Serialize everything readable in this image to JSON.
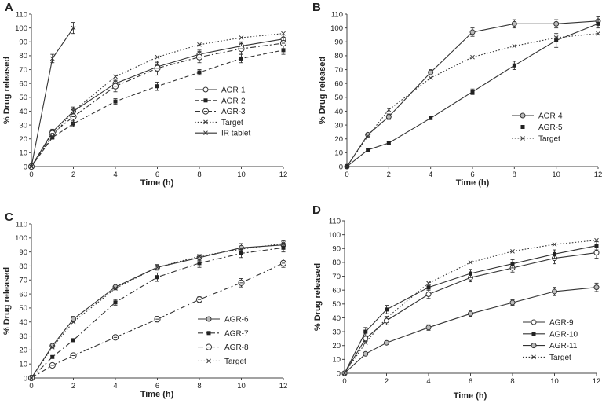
{
  "chart_data": [
    {
      "type": "line",
      "panel": "A",
      "title": "",
      "xlabel": "Time (h)",
      "ylabel": "% Drug released",
      "xlim": [
        0,
        12
      ],
      "ylim": [
        0,
        110
      ],
      "xticks": [
        0,
        2,
        4,
        6,
        8,
        10,
        12
      ],
      "yticks": [
        0,
        10,
        20,
        30,
        40,
        50,
        60,
        70,
        80,
        90,
        100,
        110
      ],
      "legend_position": "center-right",
      "series": [
        {
          "name": "AGR-1",
          "marker": "circle-open",
          "dash": "solid",
          "x": [
            0,
            1,
            2,
            4,
            6,
            8,
            10,
            12
          ],
          "values": [
            0,
            25,
            40,
            60,
            72,
            81,
            87,
            92
          ],
          "err": [
            0,
            2,
            3,
            3,
            3,
            3,
            3,
            3
          ]
        },
        {
          "name": "AGR-2",
          "marker": "square-filled",
          "dash": "dash",
          "x": [
            0,
            1,
            2,
            4,
            6,
            8,
            10,
            12
          ],
          "values": [
            0,
            21,
            31,
            47,
            58,
            68,
            78,
            84
          ],
          "err": [
            0,
            1,
            2,
            2,
            3,
            2,
            3,
            3
          ]
        },
        {
          "name": "AGR-3",
          "marker": "circle-dashed",
          "dash": "dashdot",
          "x": [
            0,
            1,
            2,
            4,
            6,
            8,
            10,
            12
          ],
          "values": [
            0,
            24,
            36,
            58,
            71,
            79,
            85,
            89
          ],
          "err": [
            0,
            2,
            5,
            4,
            5,
            4,
            4,
            4
          ]
        },
        {
          "name": "Target",
          "marker": "x",
          "dash": "dot",
          "x": [
            0,
            1,
            2,
            4,
            6,
            8,
            10,
            12
          ],
          "values": [
            0,
            22,
            40,
            65,
            79,
            88,
            93,
            96
          ],
          "err": []
        },
        {
          "name": "IR tablet",
          "marker": "x",
          "dash": "solid",
          "x": [
            0,
            1,
            2
          ],
          "values": [
            0,
            78,
            100
          ],
          "err": [
            0,
            3,
            4
          ]
        }
      ]
    },
    {
      "type": "line",
      "panel": "B",
      "title": "",
      "xlabel": "Time (h)",
      "ylabel": "% Drug released",
      "xlim": [
        0,
        12
      ],
      "ylim": [
        0,
        110
      ],
      "xticks": [
        0,
        2,
        4,
        6,
        8,
        10,
        12
      ],
      "yticks": [
        0,
        10,
        20,
        30,
        40,
        50,
        60,
        70,
        80,
        90,
        100,
        110
      ],
      "legend_position": "center-right",
      "series": [
        {
          "name": "AGR-4",
          "marker": "circle-gray",
          "dash": "solid",
          "x": [
            0,
            1,
            2,
            4,
            6,
            8,
            10,
            12
          ],
          "values": [
            0,
            23,
            36,
            68,
            97,
            103,
            103,
            105
          ],
          "err": [
            0,
            1,
            2,
            2,
            3,
            3,
            3,
            3
          ]
        },
        {
          "name": "AGR-5",
          "marker": "square-filled",
          "dash": "solid",
          "x": [
            0,
            1,
            2,
            4,
            6,
            8,
            10,
            12
          ],
          "values": [
            0,
            12,
            17,
            35,
            54,
            73,
            91,
            103
          ],
          "err": [
            0,
            1,
            1,
            1,
            2,
            3,
            5,
            3
          ]
        },
        {
          "name": "Target",
          "marker": "x",
          "dash": "dot",
          "x": [
            0,
            1,
            2,
            4,
            6,
            8,
            10,
            12
          ],
          "values": [
            0,
            22,
            41,
            64,
            79,
            87,
            93,
            96
          ],
          "err": []
        }
      ]
    },
    {
      "type": "line",
      "panel": "C",
      "title": "",
      "xlabel": "Time (h)",
      "ylabel": "% Drug released",
      "xlim": [
        0,
        12
      ],
      "ylim": [
        0,
        110
      ],
      "xticks": [
        0,
        2,
        4,
        6,
        8,
        10,
        12
      ],
      "yticks": [
        0,
        10,
        20,
        30,
        40,
        50,
        60,
        70,
        80,
        90,
        100,
        110
      ],
      "legend_position": "center-right",
      "series": [
        {
          "name": "AGR-6",
          "marker": "circle-gray",
          "dash": "solid",
          "x": [
            0,
            1,
            2,
            4,
            6,
            8,
            10,
            12
          ],
          "values": [
            0,
            23,
            42,
            65,
            79,
            86,
            93,
            95
          ],
          "err": [
            0,
            1,
            2,
            2,
            2,
            2,
            3,
            3
          ]
        },
        {
          "name": "AGR-7",
          "marker": "square-filled",
          "dash": "dashdot",
          "x": [
            0,
            1,
            2,
            4,
            6,
            8,
            10,
            12
          ],
          "values": [
            0,
            15,
            27,
            54,
            72,
            82,
            89,
            93
          ],
          "err": [
            0,
            1,
            1,
            2,
            3,
            3,
            3,
            3
          ]
        },
        {
          "name": "AGR-8",
          "marker": "circle-dashed",
          "dash": "dashdot",
          "x": [
            0,
            1,
            2,
            4,
            6,
            8,
            10,
            12
          ],
          "values": [
            0,
            9,
            16,
            29,
            42,
            56,
            68,
            82
          ],
          "err": [
            0,
            1,
            1,
            1,
            2,
            2,
            3,
            3
          ]
        },
        {
          "name": "Target",
          "marker": "x",
          "dash": "dot",
          "x": [
            0,
            1,
            2,
            4,
            6,
            8,
            10,
            12
          ],
          "values": [
            0,
            22,
            40,
            64,
            79,
            87,
            92,
            96
          ],
          "err": []
        }
      ]
    },
    {
      "type": "line",
      "panel": "D",
      "title": "",
      "xlabel": "Time (h)",
      "ylabel": "% Drug released",
      "xlim": [
        0,
        12
      ],
      "ylim": [
        0,
        110
      ],
      "xticks": [
        0,
        2,
        4,
        6,
        8,
        10,
        12
      ],
      "yticks": [
        0,
        10,
        20,
        30,
        40,
        50,
        60,
        70,
        80,
        90,
        100,
        110
      ],
      "legend_position": "bottom-right",
      "series": [
        {
          "name": "AGR-9",
          "marker": "circle-open",
          "dash": "solid",
          "x": [
            0,
            1,
            2,
            4,
            6,
            8,
            10,
            12
          ],
          "values": [
            0,
            25,
            38,
            57,
            69,
            76,
            83,
            87
          ],
          "err": [
            0,
            2,
            3,
            3,
            3,
            3,
            4,
            4
          ]
        },
        {
          "name": "AGR-10",
          "marker": "square-filled",
          "dash": "solid",
          "x": [
            0,
            1,
            2,
            4,
            6,
            8,
            10,
            12
          ],
          "values": [
            0,
            30,
            46,
            62,
            72,
            79,
            86,
            92
          ],
          "err": [
            0,
            3,
            3,
            2,
            3,
            3,
            3,
            3
          ]
        },
        {
          "name": "AGR-11",
          "marker": "circle-gray",
          "dash": "solid",
          "x": [
            0,
            1,
            2,
            4,
            6,
            8,
            10,
            12
          ],
          "values": [
            0,
            14,
            22,
            33,
            43,
            51,
            59,
            62
          ],
          "err": [
            0,
            1,
            1,
            2,
            2,
            2,
            3,
            3
          ]
        },
        {
          "name": "Target",
          "marker": "x",
          "dash": "dot",
          "x": [
            0,
            1,
            2,
            4,
            6,
            8,
            10,
            12
          ],
          "values": [
            0,
            22,
            40,
            65,
            80,
            88,
            93,
            96
          ],
          "err": []
        }
      ]
    }
  ]
}
